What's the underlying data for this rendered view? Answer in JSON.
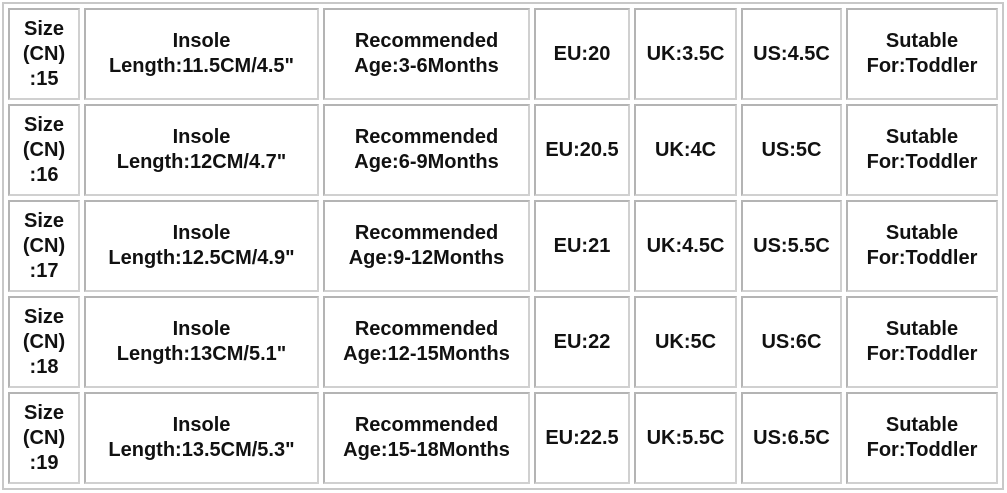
{
  "rows": [
    {
      "size": [
        "Size",
        "(CN)",
        ":15"
      ],
      "insole": [
        "Insole",
        "Length:11.5CM/4.5\""
      ],
      "age": [
        "Recommended",
        "Age:3-6Months"
      ],
      "eu": "EU:20",
      "uk": "UK:3.5C",
      "us": "US:4.5C",
      "suitable": [
        "Sutable",
        "For:Toddler"
      ]
    },
    {
      "size": [
        "Size",
        "(CN)",
        ":16"
      ],
      "insole": [
        "Insole",
        "Length:12CM/4.7\""
      ],
      "age": [
        "Recommended",
        "Age:6-9Months"
      ],
      "eu": "EU:20.5",
      "uk": "UK:4C",
      "us": "US:5C",
      "suitable": [
        "Sutable",
        "For:Toddler"
      ]
    },
    {
      "size": [
        "Size",
        "(CN)",
        ":17"
      ],
      "insole": [
        "Insole",
        "Length:12.5CM/4.9\""
      ],
      "age": [
        "Recommended",
        "Age:9-12Months"
      ],
      "eu": "EU:21",
      "uk": "UK:4.5C",
      "us": "US:5.5C",
      "suitable": [
        "Sutable",
        "For:Toddler"
      ]
    },
    {
      "size": [
        "Size",
        "(CN)",
        ":18"
      ],
      "insole": [
        "Insole",
        "Length:13CM/5.1\""
      ],
      "age": [
        "Recommended",
        "Age:12-15Months"
      ],
      "eu": "EU:22",
      "uk": "UK:5C",
      "us": "US:6C",
      "suitable": [
        "Sutable",
        "For:Toddler"
      ]
    },
    {
      "size": [
        "Size",
        "(CN)",
        ":19"
      ],
      "insole": [
        "Insole",
        "Length:13.5CM/5.3\""
      ],
      "age": [
        "Recommended",
        "Age:15-18Months"
      ],
      "eu": "EU:22.5",
      "uk": "UK:5.5C",
      "us": "US:6.5C",
      "suitable": [
        "Sutable",
        "For:Toddler"
      ]
    }
  ]
}
